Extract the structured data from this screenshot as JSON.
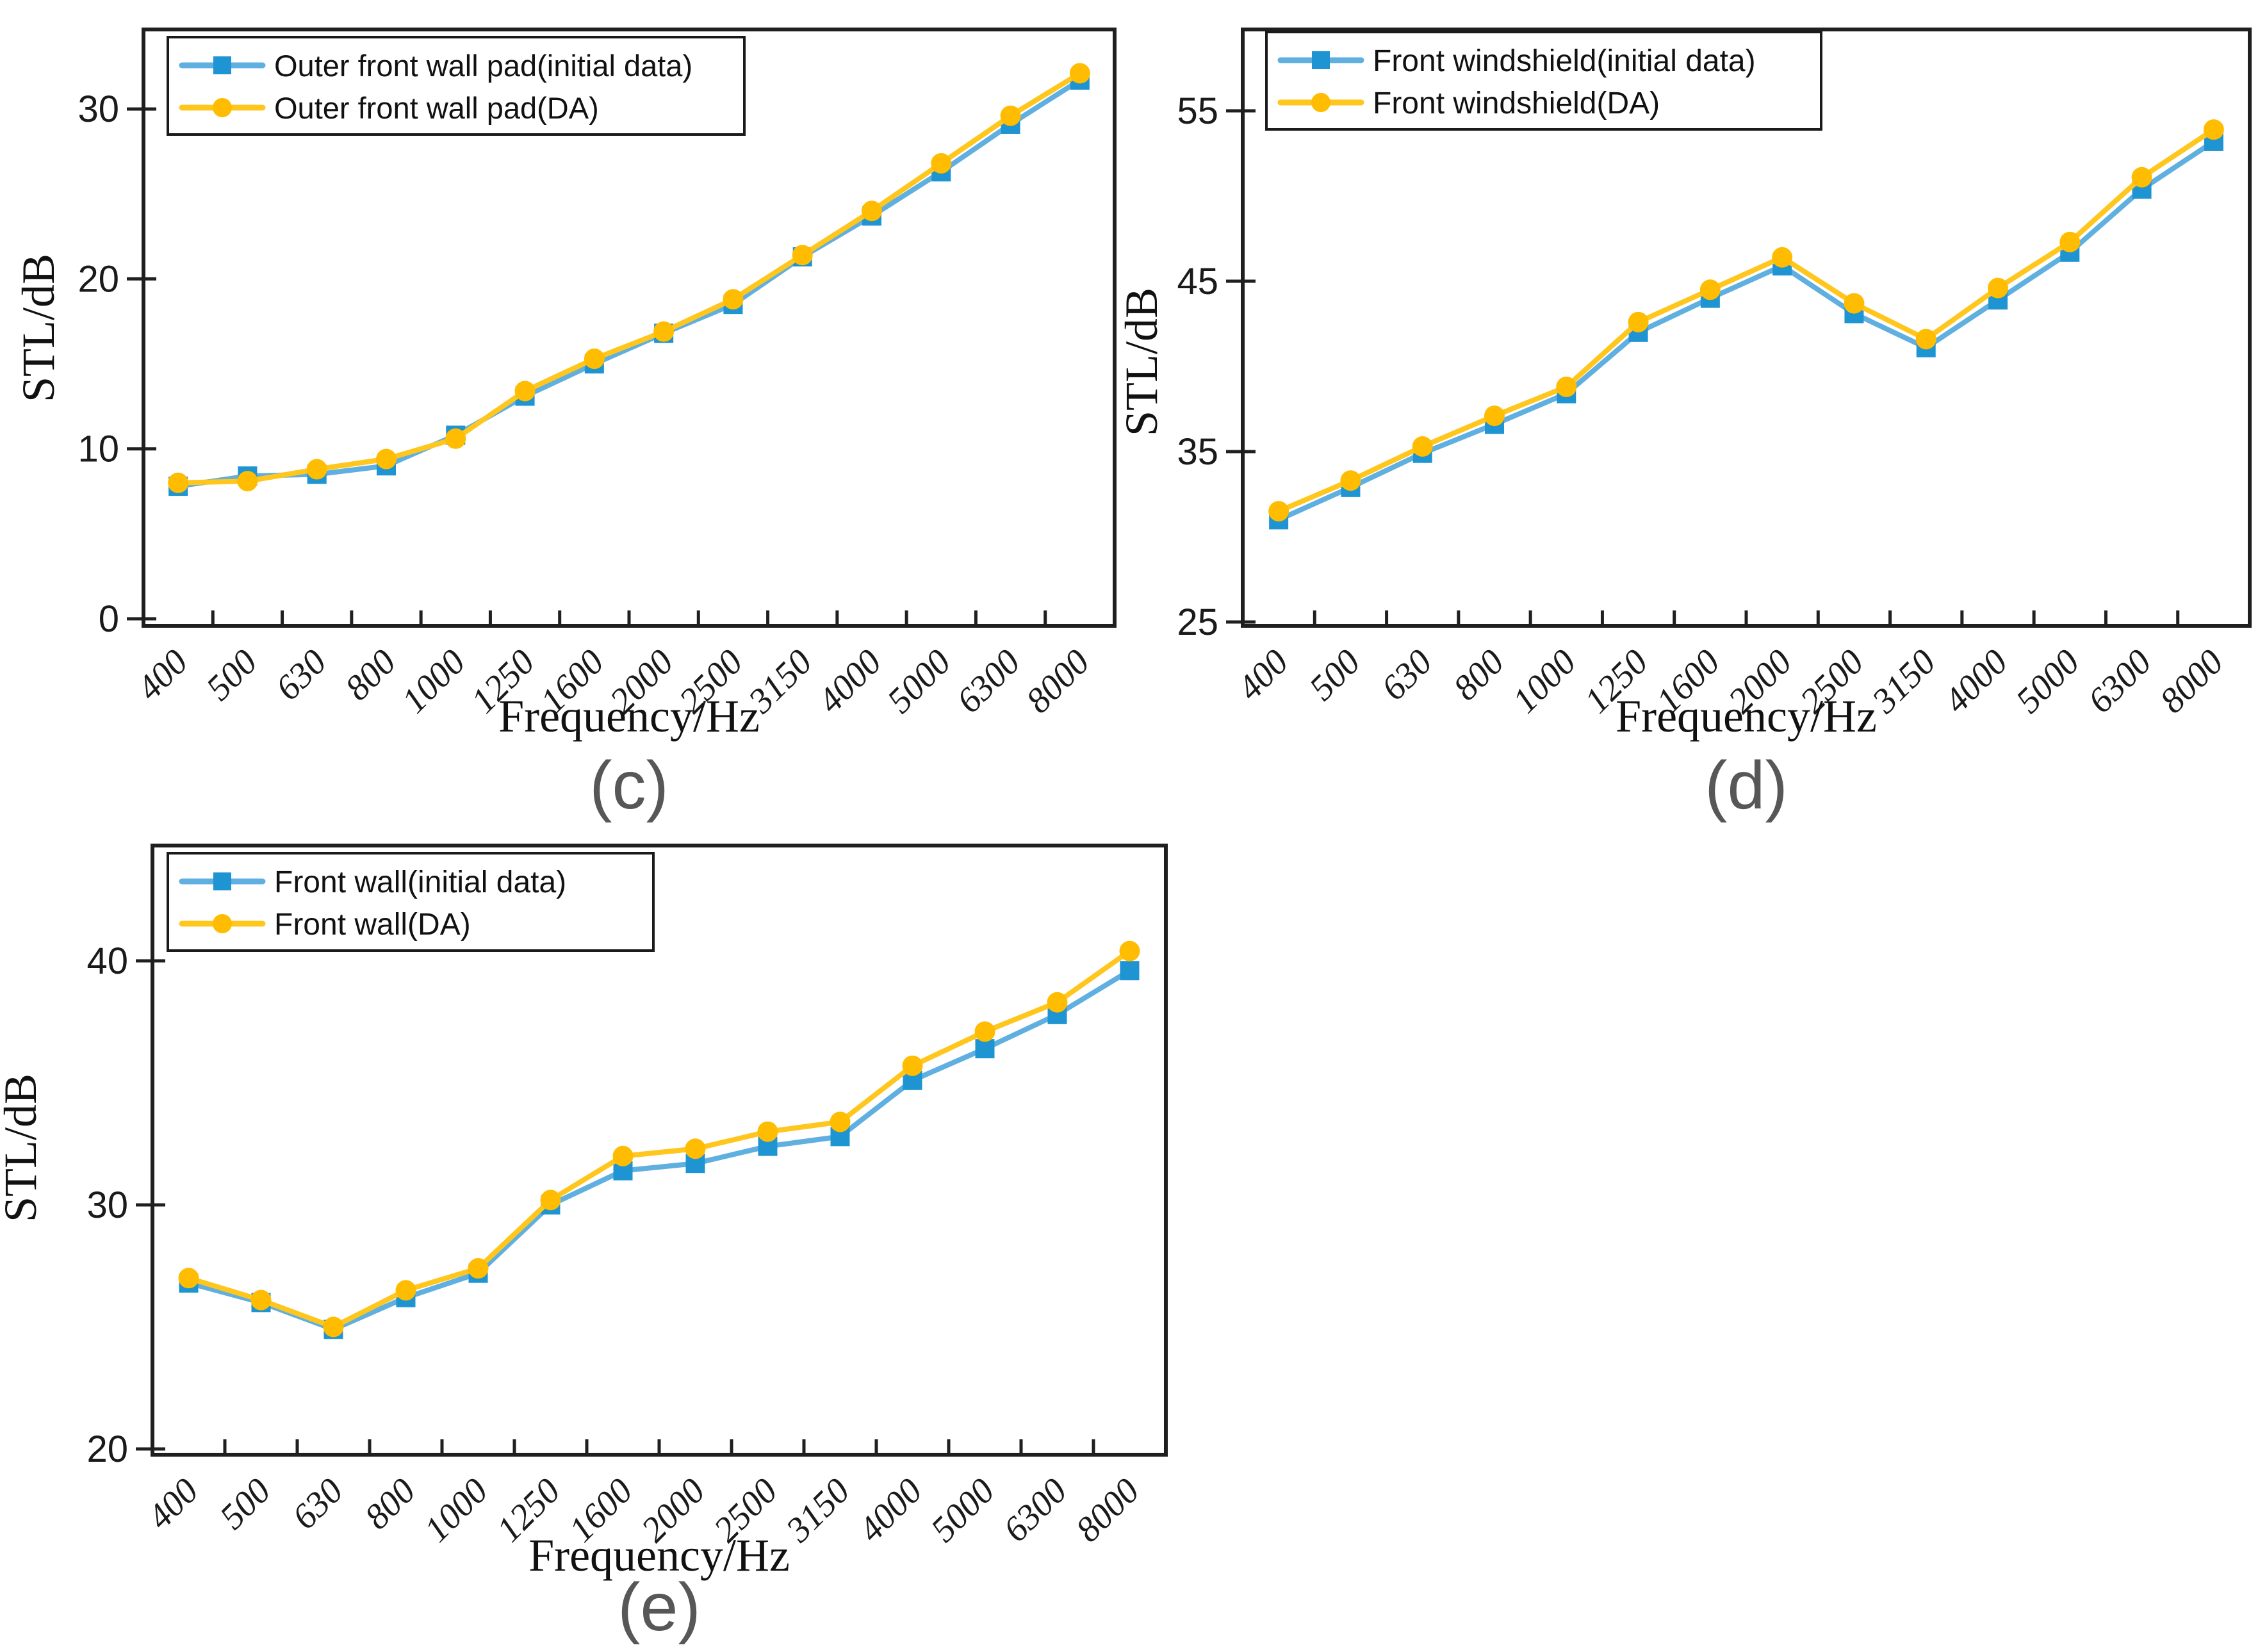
{
  "figure": {
    "background": "#ffffff",
    "description": "Three STL line charts comparing initial data vs DA"
  },
  "colors": {
    "axis": "#1f1f1f",
    "tick_label": "#1a1a1a",
    "caption": "#575757",
    "legend_border": "#1a1a1a",
    "legend_bg": "#ffffff",
    "blue_line": "#5FAFE0",
    "blue_marker": "#1F94D2",
    "yellow_line": "#FFC61E",
    "yellow_marker": "#FFBC00"
  },
  "chart_data": [
    {
      "id": "c",
      "type": "line",
      "caption": "(c)",
      "xlabel": "Frequency/Hz",
      "ylabel": "STL/dB",
      "grid": false,
      "legend_position": "top-left",
      "categories": [
        400,
        500,
        630,
        800,
        1000,
        1250,
        1600,
        2000,
        2500,
        3150,
        4000,
        5000,
        6300,
        8000
      ],
      "yticks": [
        0,
        10,
        20,
        30
      ],
      "ylim": [
        -0.4,
        34.7
      ],
      "series": [
        {
          "name": "Outer front wall pad(initial data)",
          "marker": "square",
          "line_color": "#5FAFE0",
          "marker_color": "#1F94D2",
          "values": [
            7.8,
            8.4,
            8.5,
            9.0,
            10.8,
            13.1,
            15.0,
            16.8,
            18.5,
            21.3,
            23.7,
            26.3,
            29.1,
            31.7
          ]
        },
        {
          "name": "Outer front wall pad(DA)",
          "marker": "circle",
          "line_color": "#FFC61E",
          "marker_color": "#FFBC00",
          "values": [
            8.0,
            8.1,
            8.8,
            9.4,
            10.6,
            13.4,
            15.3,
            16.9,
            18.8,
            21.4,
            24.0,
            26.8,
            29.6,
            32.1
          ]
        }
      ]
    },
    {
      "id": "d",
      "type": "line",
      "caption": "(d)",
      "xlabel": "Frequency/Hz",
      "ylabel": "STL/dB",
      "grid": false,
      "legend_position": "top-left",
      "categories": [
        400,
        500,
        630,
        800,
        1000,
        1250,
        1600,
        2000,
        2500,
        3150,
        4000,
        5000,
        6300,
        8000
      ],
      "yticks": [
        25,
        35,
        45,
        55
      ],
      "ylim": [
        24.8,
        59.8
      ],
      "series": [
        {
          "name": "Front windshield(initial data)",
          "marker": "square",
          "line_color": "#5FAFE0",
          "marker_color": "#1F94D2",
          "values": [
            31.0,
            32.9,
            34.9,
            36.6,
            38.4,
            42.0,
            44.0,
            45.9,
            43.1,
            41.1,
            43.9,
            46.7,
            50.4,
            53.2
          ]
        },
        {
          "name": "Front windshield(DA)",
          "marker": "circle",
          "line_color": "#FFC61E",
          "marker_color": "#FFBC00",
          "values": [
            31.5,
            33.3,
            35.3,
            37.1,
            38.8,
            42.6,
            44.5,
            46.4,
            43.7,
            41.6,
            44.6,
            47.3,
            51.1,
            53.9
          ]
        }
      ]
    },
    {
      "id": "e",
      "type": "line",
      "caption": "(e)",
      "xlabel": "Frequency/Hz",
      "ylabel": "STL/dB",
      "grid": false,
      "legend_position": "top-left",
      "categories": [
        400,
        500,
        630,
        800,
        1000,
        1250,
        1600,
        2000,
        2500,
        3150,
        4000,
        5000,
        6300,
        8000
      ],
      "yticks": [
        20,
        30,
        40
      ],
      "ylim": [
        19.8,
        44.7
      ],
      "series": [
        {
          "name": "Front wall(initial data)",
          "marker": "square",
          "line_color": "#5FAFE0",
          "marker_color": "#1F94D2",
          "values": [
            26.8,
            26.0,
            24.9,
            26.2,
            27.2,
            30.0,
            31.4,
            31.7,
            32.4,
            32.8,
            35.1,
            36.4,
            37.8,
            39.6
          ]
        },
        {
          "name": "Front wall(DA)",
          "marker": "circle",
          "line_color": "#FFC61E",
          "marker_color": "#FFBC00",
          "values": [
            27.0,
            26.1,
            25.0,
            26.5,
            27.4,
            30.2,
            32.0,
            32.3,
            33.0,
            33.4,
            35.7,
            37.1,
            38.3,
            40.4
          ]
        }
      ]
    }
  ]
}
